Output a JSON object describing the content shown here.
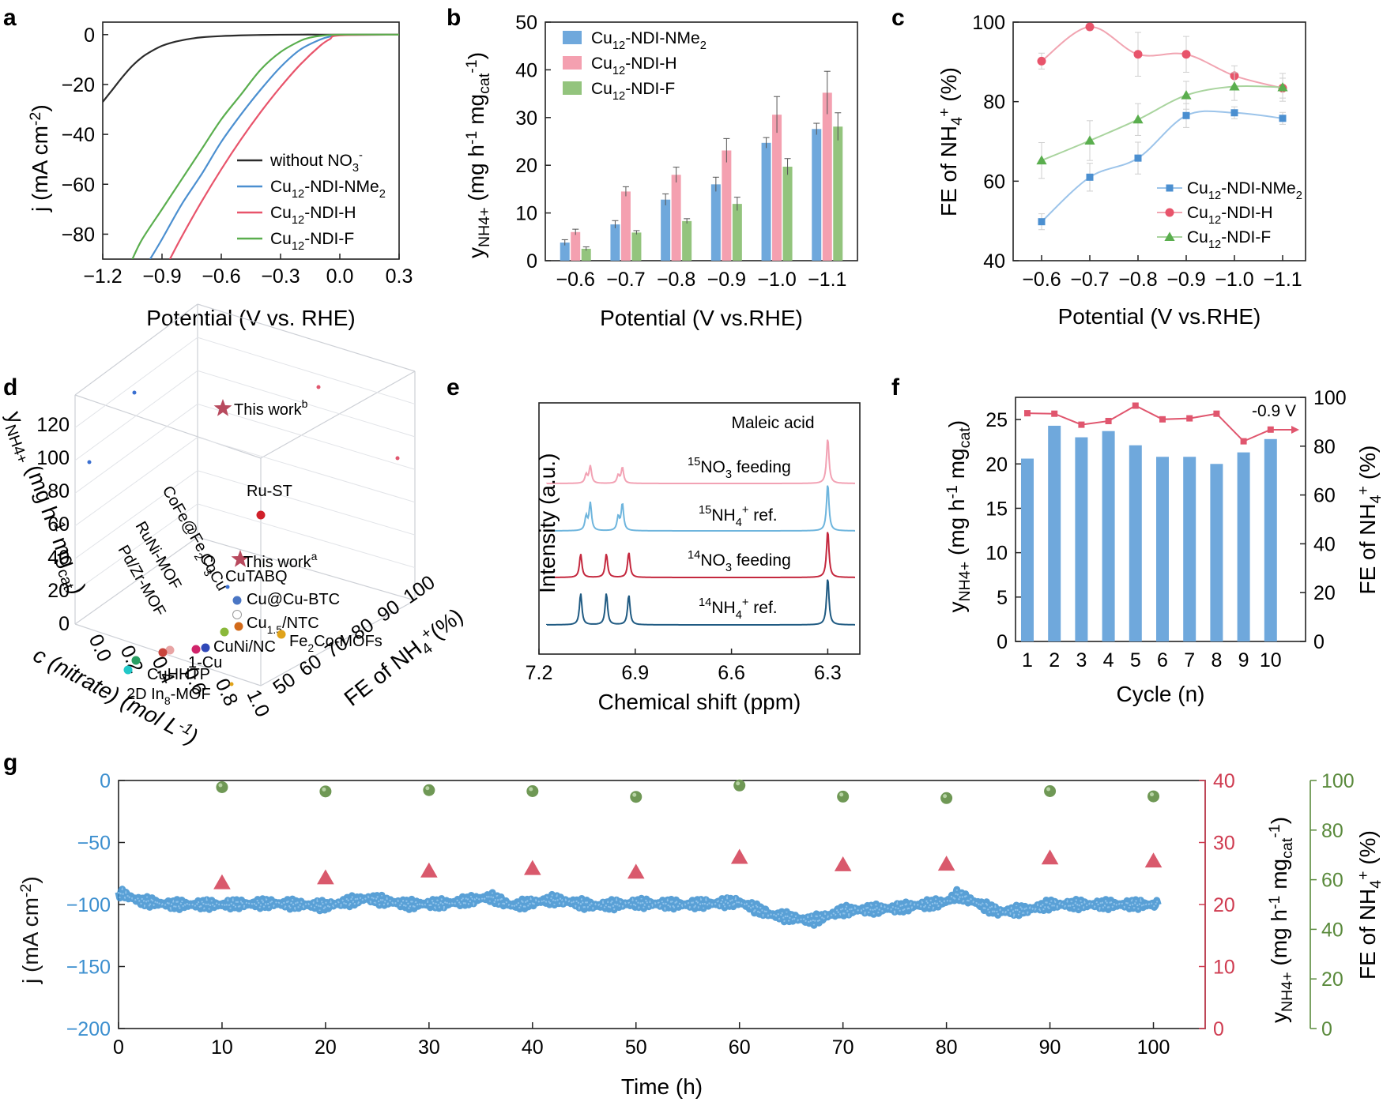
{
  "figure": {
    "panel_letters": [
      "a",
      "b",
      "c",
      "d",
      "e",
      "f",
      "g"
    ]
  },
  "colors": {
    "nme2_blue": "#4b8fd0",
    "h_red": "#e8546b",
    "f_green": "#5aae4e",
    "black": "#2b2b2b",
    "bar_blue": "#6fa8dc",
    "bar_pink": "#f4a0b0",
    "bar_green": "#93c47d",
    "fe_line": "#e0566e",
    "time_blue": "#3c8fcf",
    "time_red": "#cf3b50",
    "time_green": "#5a8a3c",
    "nmr_pink": "#f2a2b4",
    "nmr_lightblue": "#6eb5dd",
    "nmr_red": "#c4283e",
    "nmr_darkblue": "#1f5a82"
  },
  "chart_data": [
    {
      "panel": "a",
      "type": "line",
      "xlabel": "Potential (V vs. RHE)",
      "ylabel": "j (mA cm-2)",
      "xlim": [
        -1.2,
        0.3
      ],
      "ylim": [
        -90,
        5
      ],
      "xticks": [
        "−1.2",
        "−0.9",
        "−0.6",
        "−0.3",
        "0.0",
        "0.3"
      ],
      "yticks": [
        "0",
        "−20",
        "−40",
        "−60",
        "−80"
      ],
      "legend_position": "bottom-right",
      "series": [
        {
          "name": "without NO3-",
          "x": [
            -1.2,
            -1.15,
            -1.1,
            -1.05,
            -1.0,
            -0.95,
            -0.9,
            -0.85,
            -0.8,
            -0.75,
            -0.7,
            -0.6,
            -0.5,
            -0.4,
            -0.3,
            -0.2,
            -0.1,
            0.0,
            0.3
          ],
          "y": [
            -27,
            -22,
            -17,
            -12.5,
            -9,
            -6.5,
            -4.5,
            -3.2,
            -2.3,
            -1.6,
            -1.1,
            -0.6,
            -0.3,
            -0.15,
            -0.05,
            0,
            0,
            0,
            0
          ]
        },
        {
          "name": "Cu12-NDI-NMe2",
          "x": [
            -0.96,
            -0.9,
            -0.8,
            -0.7,
            -0.6,
            -0.5,
            -0.4,
            -0.3,
            -0.2,
            -0.1,
            -0.05,
            0.0,
            0.3
          ],
          "y": [
            -90,
            -82,
            -68,
            -56,
            -43,
            -32,
            -22,
            -13,
            -6,
            -2,
            -0.8,
            -0.2,
            0
          ]
        },
        {
          "name": "Cu12-NDI-H",
          "x": [
            -0.86,
            -0.8,
            -0.7,
            -0.6,
            -0.5,
            -0.4,
            -0.3,
            -0.2,
            -0.1,
            -0.05,
            0.0,
            0.3
          ],
          "y": [
            -90,
            -81,
            -67,
            -54,
            -42,
            -31,
            -21,
            -12,
            -4.5,
            -1.8,
            -0.3,
            0
          ]
        },
        {
          "name": "Cu12-NDI-F",
          "x": [
            -1.05,
            -1.0,
            -0.9,
            -0.8,
            -0.7,
            -0.6,
            -0.5,
            -0.4,
            -0.3,
            -0.2,
            -0.15,
            -0.1,
            0.0,
            0.3
          ],
          "y": [
            -90,
            -82,
            -70,
            -58,
            -46,
            -34,
            -24,
            -14,
            -7,
            -2.5,
            -1.2,
            -0.5,
            0,
            0
          ]
        }
      ],
      "legend": [
        "without NO₃⁻",
        "Cu₁₂-NDI-NMe₂",
        "Cu₁₂-NDI-H",
        "Cu₁₂-NDI-F"
      ]
    },
    {
      "panel": "b",
      "type": "bar",
      "xlabel": "Potential (V vs.RHE)",
      "ylabel": "yNH4+ (mg h-1 mgcat-1)",
      "ylim": [
        0,
        50
      ],
      "categories": [
        "−0.6",
        "−0.7",
        "−0.8",
        "−0.9",
        "−1.0",
        "−1.1"
      ],
      "yticks": [
        "0",
        "10",
        "20",
        "30",
        "40",
        "50"
      ],
      "legend_position": "top-left",
      "series": [
        {
          "name": "Cu12-NDI-NMe2",
          "values": [
            3.8,
            7.6,
            12.8,
            16.0,
            24.7,
            27.6
          ],
          "errors": [
            0.6,
            0.8,
            1.2,
            1.5,
            1.1,
            1.2
          ]
        },
        {
          "name": "Cu12-NDI-H",
          "values": [
            6.0,
            14.5,
            18.0,
            23.1,
            30.6,
            35.2
          ],
          "errors": [
            0.6,
            1.0,
            1.6,
            2.5,
            3.8,
            4.5
          ]
        },
        {
          "name": "Cu12-NDI-F",
          "values": [
            2.5,
            5.9,
            8.3,
            11.9,
            19.7,
            28.1
          ],
          "errors": [
            0.4,
            0.4,
            0.5,
            1.4,
            1.7,
            2.9
          ]
        }
      ],
      "legend": [
        "Cu₁₂-NDI-NMe₂",
        "Cu₁₂-NDI-H",
        "Cu₁₂-NDI-F"
      ]
    },
    {
      "panel": "c",
      "type": "line",
      "xlabel": "Potential (V vs.RHE)",
      "ylabel": "FE of NH4+ (%)",
      "ylim": [
        40,
        100
      ],
      "categories": [
        "−0.6",
        "−0.7",
        "−0.8",
        "−0.9",
        "−1.0",
        "−1.1"
      ],
      "yticks": [
        "40",
        "60",
        "80",
        "100"
      ],
      "legend_position": "bottom-right",
      "series": [
        {
          "name": "Cu12-NDI-NMe2",
          "values": [
            49.8,
            61.0,
            65.8,
            76.5,
            77.2,
            75.8
          ],
          "errors": [
            2.0,
            3.5,
            4.0,
            3.0,
            1.5,
            1.5
          ]
        },
        {
          "name": "Cu12-NDI-H",
          "values": [
            90.2,
            98.8,
            91.9,
            91.9,
            86.5,
            83.4
          ],
          "errors": [
            2.0,
            0.8,
            5.5,
            4.5,
            2.5,
            2.5
          ]
        },
        {
          "name": "Cu12-NDI-F",
          "values": [
            65.2,
            70.2,
            75.5,
            81.6,
            83.8,
            83.6
          ],
          "errors": [
            4.5,
            5.0,
            4.0,
            3.5,
            3.5,
            3.5
          ]
        }
      ],
      "legend": [
        "Cu₁₂-NDI-NMe₂",
        "Cu₁₂-NDI-H",
        "Cu₁₂-NDI-F"
      ]
    },
    {
      "panel": "d",
      "type": "scatter",
      "note_axes": [
        "c (nitrate) (mol L−1)",
        "FE of NH4+ (%)",
        "yNH4+ (mg h−1 mgcat)"
      ],
      "zticks": [
        "0",
        "20",
        "40",
        "60",
        "80",
        "100",
        "120"
      ],
      "cticks": [
        "0.0",
        "0.2",
        "0.4",
        "0.6",
        "0.8",
        "1.0"
      ],
      "feticks": [
        "50",
        "60",
        "70",
        "80",
        "90",
        "100"
      ],
      "labels": [
        "This work",
        "Ru-ST",
        "This work",
        "CoFe@Fe2O3",
        "CoCu",
        "CuTABQ",
        "Cu@Cu-BTC",
        "RuNi-MOF",
        "Pd/Zr-MOF",
        "Cu1.5/NTC",
        "1-Cu",
        "CuNi/NC",
        "Fe2Co-MOFs",
        "CuHHTP",
        "2D In8-MOF"
      ]
    },
    {
      "panel": "e",
      "type": "line",
      "xlabel": "Chemical shift (ppm)",
      "ylabel": "Intensity (a.u.)",
      "xlim": [
        7.2,
        6.2
      ],
      "xticks": [
        "7.2",
        "6.9",
        "6.6",
        "6.3"
      ],
      "annotation": "Maleic acid",
      "series": [
        {
          "name": "15NO3 feeding",
          "peaks_ppm": [
            7.04,
            6.94,
            6.3
          ]
        },
        {
          "name": "15NH4+ ref.",
          "peaks_ppm": [
            7.04,
            6.94,
            6.3
          ]
        },
        {
          "name": "14NO3 feeding",
          "peaks_ppm": [
            7.07,
            6.99,
            6.92,
            6.3
          ]
        },
        {
          "name": "14NH4+ ref.",
          "peaks_ppm": [
            7.07,
            6.99,
            6.92,
            6.3
          ]
        }
      ]
    },
    {
      "panel": "f",
      "type": "bar",
      "xlabel": "Cycle (n)",
      "ylabel": "yNH4+ (mg h-1 mgcat-1)",
      "ylabel_right": "FE of NH4+ (%)",
      "annotation": "-0.9 V",
      "categories": [
        "1",
        "2",
        "3",
        "4",
        "5",
        "6",
        "7",
        "8",
        "9",
        "10"
      ],
      "ylim": [
        0,
        27.5
      ],
      "ylim_right": [
        0,
        100
      ],
      "yticks": [
        "0",
        "5",
        "10",
        "15",
        "20",
        "25"
      ],
      "yticks_right": [
        "0",
        "20",
        "40",
        "60",
        "80",
        "100"
      ],
      "series": [
        {
          "name": "yield",
          "values": [
            20.6,
            24.3,
            23.0,
            23.7,
            22.1,
            20.8,
            20.8,
            20.0,
            21.3,
            22.8
          ]
        },
        {
          "name": "FE",
          "axis": "right",
          "values": [
            93.5,
            93.3,
            88.8,
            90.3,
            96.6,
            91.0,
            91.4,
            93.3,
            82.0,
            86.8
          ]
        }
      ]
    },
    {
      "panel": "g",
      "type": "scatter",
      "xlabel": "Time (h)",
      "ylabel": "j (mA cm-2)",
      "ylabel_right1": "yNH4+ (mg h-1 mgcat-1)",
      "ylabel_right2": "FE of NH4+ (%)",
      "xlim": [
        0,
        105
      ],
      "ylim": [
        -200,
        0
      ],
      "ylim_right1": [
        0,
        40
      ],
      "ylim_right2": [
        0,
        100
      ],
      "xticks": [
        "0",
        "10",
        "20",
        "30",
        "40",
        "50",
        "60",
        "70",
        "80",
        "90",
        "100"
      ],
      "yticks": [
        "0",
        "−50",
        "−100",
        "−150",
        "−200"
      ],
      "yticks_right1": [
        "0",
        "10",
        "20",
        "30",
        "40"
      ],
      "yticks_right2": [
        "0",
        "20",
        "40",
        "60",
        "80",
        "100"
      ],
      "series": [
        {
          "name": "current",
          "x": [
            0,
            2,
            5,
            10,
            15,
            20,
            24,
            28,
            32,
            36,
            38,
            42,
            46,
            50,
            55,
            60,
            63,
            67,
            70,
            75,
            80,
            81,
            85,
            88,
            90,
            95,
            100.5
          ],
          "y": [
            -90,
            -97,
            -100,
            -100,
            -99,
            -101,
            -95,
            -100,
            -99,
            -94,
            -101,
            -96,
            -101,
            -99,
            -100,
            -98,
            -108,
            -113,
            -105,
            -103,
            -98,
            -92,
            -106,
            -104,
            -100,
            -100,
            -100
          ]
        },
        {
          "name": "yield",
          "axis": "right1",
          "x": [
            10,
            20,
            30,
            40,
            50,
            60,
            70,
            80,
            90,
            100
          ],
          "values": [
            23.5,
            24.3,
            25.4,
            25.8,
            25.2,
            27.6,
            26.4,
            26.5,
            27.5,
            27.0
          ]
        },
        {
          "name": "FE",
          "axis": "right2",
          "x": [
            10,
            20,
            30,
            40,
            50,
            60,
            70,
            80,
            90,
            100
          ],
          "values": [
            97.3,
            95.6,
            96.1,
            95.7,
            93.4,
            98.0,
            93.5,
            92.9,
            95.7,
            93.6
          ]
        }
      ]
    }
  ]
}
